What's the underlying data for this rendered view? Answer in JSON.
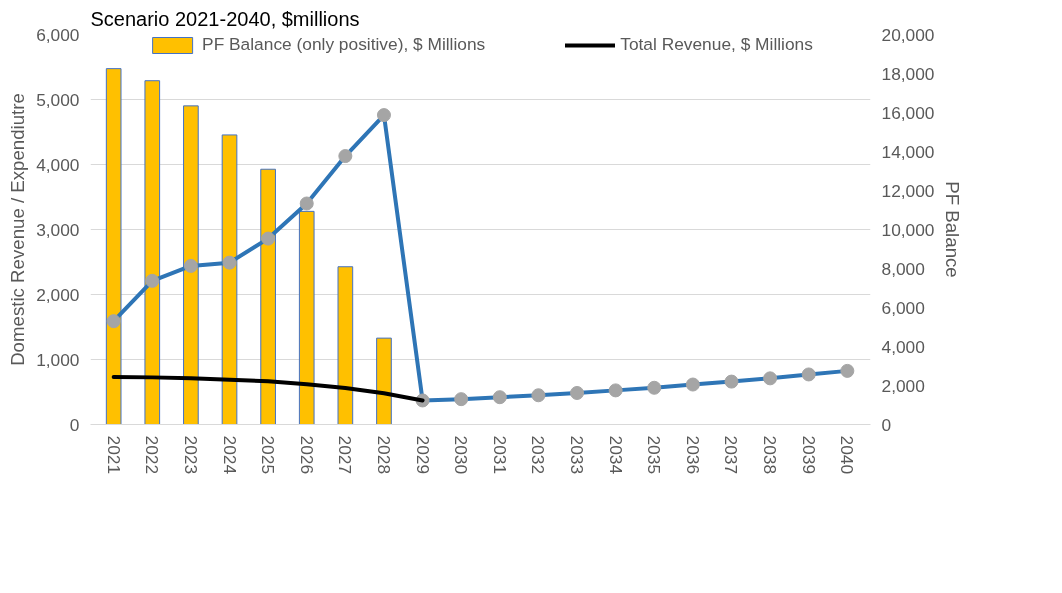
{
  "chart_data": {
    "type": "bar",
    "title": "Scenario 2021-2040, $millions",
    "categories": [
      "2021",
      "2022",
      "2023",
      "2024",
      "2025",
      "2026",
      "2027",
      "2028",
      "2029",
      "2030",
      "2031",
      "2032",
      "2033",
      "2034",
      "2035",
      "2036",
      "2037",
      "2038",
      "2039",
      "2040"
    ],
    "series": [
      {
        "name": "PF Balance (only positive), $ Millions",
        "axis": "y2",
        "color": "#ffc000",
        "values": [
          18250,
          17630,
          16340,
          14850,
          13090,
          10930,
          8090,
          4430,
          null,
          null,
          null,
          null,
          null,
          null,
          null,
          null,
          null,
          null,
          null,
          null
        ]
      },
      {
        "type": "line",
        "color": "#2e75b6",
        "marker": "circle",
        "values": [
          1590,
          2210,
          2440,
          2490,
          2860,
          3400,
          4130,
          4760,
          370,
          390,
          420,
          450,
          485,
          525,
          565,
          615,
          660,
          710,
          770,
          825
        ]
      },
      {
        "name": "Total Revenue, $ Millions",
        "type": "line",
        "color": "#000000",
        "marker": "none",
        "values": [
          730,
          725,
          710,
          690,
          665,
          620,
          560,
          480,
          370,
          null,
          null,
          null,
          null,
          null,
          null,
          null,
          null,
          null,
          null,
          null
        ]
      }
    ],
    "ylabel": "Domestic Revenue / Expendiutre",
    "y2label": "PF Balance",
    "ylim": [
      0,
      6000
    ],
    "yticks": [
      {
        "value": 0,
        "label": "0"
      },
      {
        "value": 1000,
        "label": "1,000"
      },
      {
        "value": 2000,
        "label": "2,000"
      },
      {
        "value": 3000,
        "label": "3,000"
      },
      {
        "value": 4000,
        "label": "4,000"
      },
      {
        "value": 5000,
        "label": "5,000"
      },
      {
        "value": 6000,
        "label": "6,000"
      }
    ],
    "y2lim": [
      0,
      20000
    ],
    "y2ticks": [
      {
        "value": 0,
        "label": "0"
      },
      {
        "value": 2000,
        "label": "2,000"
      },
      {
        "value": 4000,
        "label": "4,000"
      },
      {
        "value": 6000,
        "label": "6,000"
      },
      {
        "value": 8000,
        "label": "8,000"
      },
      {
        "value": 10000,
        "label": "10,000"
      },
      {
        "value": 12000,
        "label": "12,000"
      },
      {
        "value": 14000,
        "label": "14,000"
      },
      {
        "value": 16000,
        "label": "16,000"
      },
      {
        "value": 18000,
        "label": "18,000"
      },
      {
        "value": 20000,
        "label": "20,000"
      }
    ],
    "grid": "y",
    "legend": "top"
  }
}
